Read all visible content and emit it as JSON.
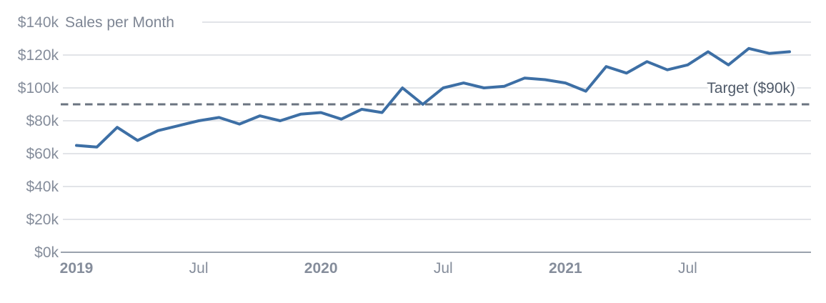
{
  "chart_data": {
    "type": "line",
    "title": "Sales per Month",
    "x_unit": "month",
    "x": [
      "2019-01",
      "2019-02",
      "2019-03",
      "2019-04",
      "2019-05",
      "2019-06",
      "2019-07",
      "2019-08",
      "2019-09",
      "2019-10",
      "2019-11",
      "2019-12",
      "2020-01",
      "2020-02",
      "2020-03",
      "2020-04",
      "2020-05",
      "2020-06",
      "2020-07",
      "2020-08",
      "2020-09",
      "2020-10",
      "2020-11",
      "2020-12",
      "2021-01",
      "2021-02",
      "2021-03",
      "2021-04",
      "2021-05",
      "2021-06",
      "2021-07",
      "2021-08",
      "2021-09",
      "2021-10",
      "2021-11",
      "2021-12"
    ],
    "series": [
      {
        "name": "Sales per Month",
        "unit": "k$",
        "values": [
          65,
          64,
          76,
          68,
          74,
          77,
          80,
          82,
          78,
          83,
          80,
          84,
          85,
          81,
          87,
          85,
          100,
          90,
          100,
          103,
          100,
          101,
          106,
          105,
          103,
          98,
          113,
          109,
          116,
          111,
          114,
          122,
          114,
          124,
          121,
          122
        ]
      }
    ],
    "target_line": {
      "label": "Target ($90k)",
      "value": 90,
      "style": "dashed"
    },
    "ylim": [
      0,
      140
    ],
    "y_ticks": [
      0,
      20,
      40,
      60,
      80,
      100,
      120,
      140
    ],
    "y_tick_labels": [
      "$0k",
      "$20k",
      "$40k",
      "$60k",
      "$80k",
      "$100k",
      "$120k",
      "$140k"
    ],
    "x_ticks": [
      {
        "month_index": 0,
        "label": "2019",
        "bold": true
      },
      {
        "month_index": 6,
        "label": "Jul",
        "bold": false
      },
      {
        "month_index": 12,
        "label": "2020",
        "bold": true
      },
      {
        "month_index": 18,
        "label": "Jul",
        "bold": false
      },
      {
        "month_index": 24,
        "label": "2021",
        "bold": true
      },
      {
        "month_index": 30,
        "label": "Jul",
        "bold": false
      }
    ],
    "grid": true,
    "legend": "none",
    "colors": {
      "series": "#3d6fa5",
      "target": "#6b7480",
      "grid": "#d9dce1",
      "axis": "#9aa2ad",
      "tick_label": "#858d9b",
      "title": "#7e8694",
      "target_label": "#4f5a69",
      "background": "#ffffff"
    }
  }
}
